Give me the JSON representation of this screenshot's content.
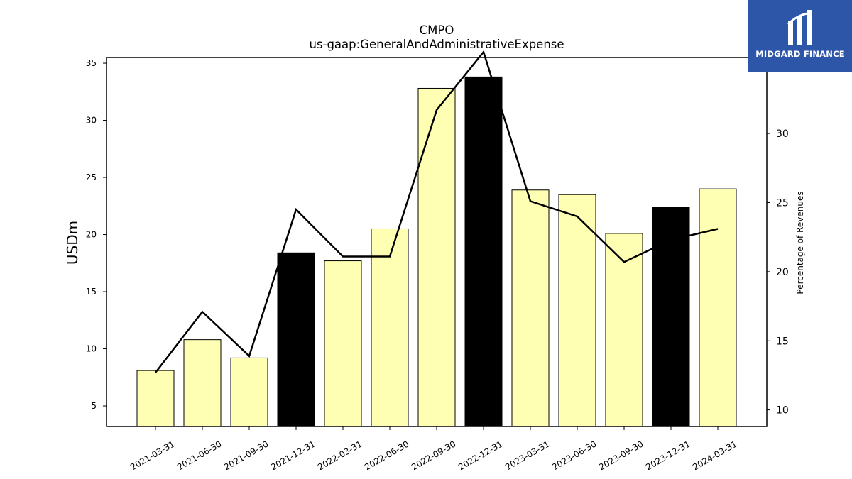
{
  "chart_data": {
    "type": "bar",
    "title": "CMPO",
    "subtitle": "us-gaap:GeneralAndAdministrativeExpense",
    "ylabel": "USDm",
    "y2label": "Percentage of Revenues",
    "categories": [
      "2021-03-31",
      "2021-06-30",
      "2021-09-30",
      "2021-12-31",
      "2022-03-31",
      "2022-06-30",
      "2022-09-30",
      "2022-12-31",
      "2023-03-31",
      "2023-06-30",
      "2023-09-30",
      "2023-12-31",
      "2024-03-31"
    ],
    "series": [
      {
        "type": "bar",
        "axis": "left",
        "values": [
          8.1,
          10.8,
          9.2,
          18.4,
          17.7,
          20.5,
          32.8,
          33.8,
          23.9,
          23.5,
          20.1,
          22.4,
          24.0
        ],
        "highlight": [
          false,
          false,
          false,
          true,
          false,
          false,
          false,
          true,
          false,
          false,
          false,
          true,
          false
        ],
        "color": "#ffffb3",
        "highlight_color": "#000000"
      },
      {
        "type": "line",
        "axis": "right",
        "values": [
          12.7,
          17.1,
          13.9,
          24.5,
          21.1,
          21.1,
          31.7,
          35.9,
          25.1,
          24.0,
          20.7,
          22.3,
          23.1
        ],
        "color": "#000000"
      }
    ],
    "ylim": [
      3.2,
      35.5
    ],
    "y2lim": [
      8.8,
      35.5
    ],
    "yticks": [
      5,
      10,
      15,
      20,
      25,
      30,
      35
    ],
    "y2ticks": [
      10,
      15,
      20,
      25,
      30
    ],
    "grid": false,
    "legend": "none"
  },
  "logo": {
    "text": "MIDGARD FINANCE",
    "color": "#2d56a8"
  }
}
